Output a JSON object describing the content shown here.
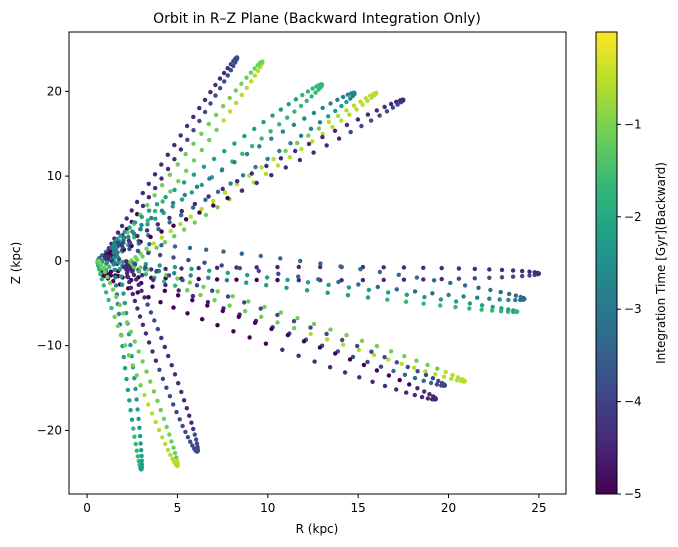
{
  "chart_data": {
    "type": "scatter",
    "title": "Orbit in R–Z Plane (Backward Integration Only)",
    "xlabel": "R (kpc)",
    "ylabel": "Z (kpc)",
    "xlim": [
      -1.0,
      26.5
    ],
    "ylim": [
      -27.5,
      27.0
    ],
    "xticks": [
      0,
      5,
      10,
      15,
      20,
      25
    ],
    "yticks": [
      -20,
      -10,
      0,
      10,
      20
    ],
    "grid": false,
    "colormap": "viridis",
    "colors": {
      "viridis": [
        "#440154",
        "#482878",
        "#3e4989",
        "#31688e",
        "#26828e",
        "#1f9e89",
        "#35b779",
        "#6ece58",
        "#b5de2b",
        "#fde725"
      ]
    },
    "colorbar": {
      "label": "Integration Time [Gyr](Backward)",
      "range": [
        -5.0,
        0.0
      ],
      "ticks": [
        -5,
        -4,
        -3,
        -2,
        -1
      ],
      "tick_labels": [
        "−5",
        "−4",
        "−3",
        "−2",
        "−1"
      ]
    },
    "lobes": [
      {
        "tip": [
          8.3,
          24.0
        ],
        "t_tip": -4.3
      },
      {
        "tip": [
          9.7,
          23.5
        ],
        "t_tip": -1.2
      },
      {
        "tip": [
          13.0,
          20.8
        ],
        "t_tip": -2.0
      },
      {
        "tip": [
          14.8,
          19.8
        ],
        "t_tip": -3.0
      },
      {
        "tip": [
          16.0,
          19.8
        ],
        "t_tip": -0.8
      },
      {
        "tip": [
          17.5,
          19.0
        ],
        "t_tip": -4.6
      },
      {
        "tip": [
          25.0,
          -1.5
        ],
        "t_tip": -4.6
      },
      {
        "tip": [
          24.2,
          -4.5
        ],
        "t_tip": -3.5
      },
      {
        "tip": [
          23.8,
          -6.0
        ],
        "t_tip": -2.2
      },
      {
        "tip": [
          20.9,
          -14.2
        ],
        "t_tip": -0.9
      },
      {
        "tip": [
          19.8,
          -14.7
        ],
        "t_tip": -4.1
      },
      {
        "tip": [
          19.3,
          -16.3
        ],
        "t_tip": -4.8
      },
      {
        "tip": [
          3.0,
          -24.6
        ],
        "t_tip": -2.4
      },
      {
        "tip": [
          5.0,
          -24.2
        ],
        "t_tip": -1.0
      },
      {
        "tip": [
          6.1,
          -22.5
        ],
        "t_tip": -4.2
      }
    ]
  }
}
